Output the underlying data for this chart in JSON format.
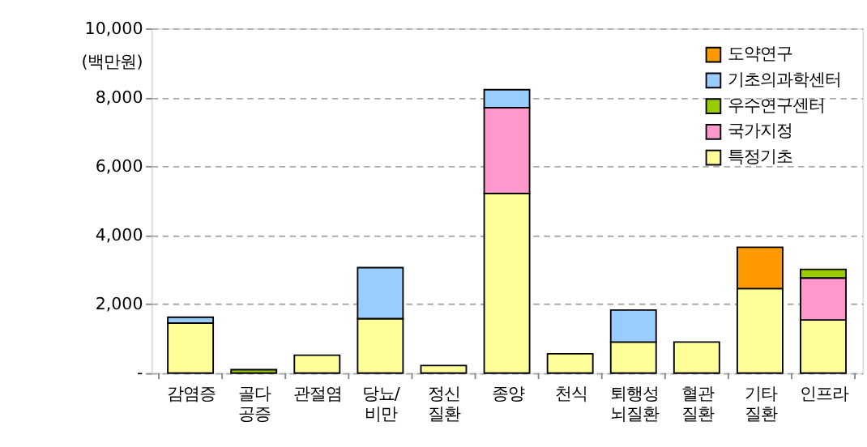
{
  "chart_data": {
    "type": "bar",
    "stacked": true,
    "ylabel": "(백만원)",
    "categories": [
      "감염증",
      "골다\n공증",
      "관절염",
      "당뇨/\n비만",
      "정신\n질환",
      "종양",
      "천식",
      "퇴행성\n뇌질환",
      "혈관\n질환",
      "기타\n질환",
      "인프라"
    ],
    "series": [
      {
        "name": "특정기초",
        "color": "#ffff99",
        "values": [
          1450,
          null,
          520,
          1580,
          220,
          5210,
          560,
          900,
          900,
          2450,
          1540
        ]
      },
      {
        "name": "국가지정",
        "color": "#ff99cc",
        "values": [
          null,
          null,
          null,
          null,
          null,
          2490,
          null,
          null,
          null,
          null,
          1220
        ]
      },
      {
        "name": "우수연구센터",
        "color": "#99cc00",
        "values": [
          null,
          100,
          null,
          null,
          null,
          null,
          null,
          null,
          null,
          null,
          250
        ]
      },
      {
        "name": "기초의과학센터",
        "color": "#99ccff",
        "values": [
          170,
          null,
          null,
          1480,
          null,
          520,
          null,
          930,
          null,
          null,
          null
        ]
      },
      {
        "name": "도약연구",
        "color": "#ff9900",
        "values": [
          null,
          null,
          null,
          null,
          null,
          null,
          null,
          null,
          null,
          1200,
          null
        ]
      }
    ],
    "ylim": [
      0,
      10000
    ],
    "yticks": [
      {
        "value": 0,
        "label": "-"
      },
      {
        "value": 2000,
        "label": "2,000"
      },
      {
        "value": 4000,
        "label": "4,000"
      },
      {
        "value": 6000,
        "label": "6,000"
      },
      {
        "value": 8000,
        "label": "8,000"
      },
      {
        "value": 10000,
        "label": "10,000"
      }
    ],
    "grid": "y",
    "legend": "top right"
  }
}
